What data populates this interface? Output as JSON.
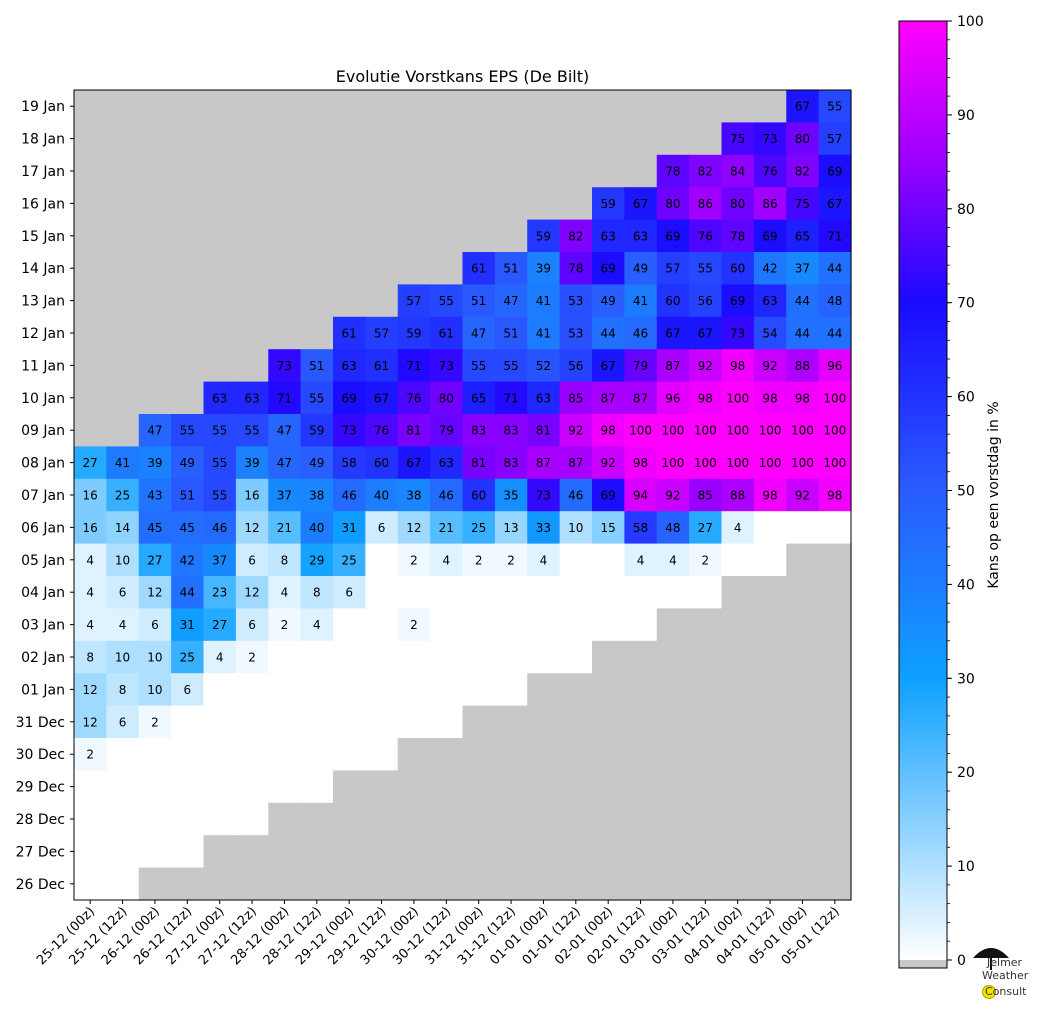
{
  "chart_data": {
    "type": "heatmap",
    "title": "Evolutie Vorstkans EPS (De Bilt)",
    "colorbar": {
      "label": "Kans op een vorstdag in %",
      "ticks": [
        "0",
        "10",
        "20",
        "30",
        "40",
        "50",
        "60",
        "70",
        "80",
        "90",
        "100"
      ],
      "range": [
        0,
        100
      ],
      "stops": [
        {
          "v": 0,
          "color": "#ffffff"
        },
        {
          "v": 30,
          "color": "#0ea0ff"
        },
        {
          "v": 50,
          "color": "#2a5cff"
        },
        {
          "v": 70,
          "color": "#1a0aff"
        },
        {
          "v": 85,
          "color": "#9a00ff"
        },
        {
          "v": 100,
          "color": "#ff00ff"
        }
      ],
      "nodata_color": "#c8c8c8"
    },
    "x_labels": [
      "25-12 (00z)",
      "25-12 (12z)",
      "26-12 (00z)",
      "26-12 (12z)",
      "27-12 (00z)",
      "27-12 (12z)",
      "28-12 (00z)",
      "28-12 (12z)",
      "29-12 (00z)",
      "29-12 (12z)",
      "30-12 (00z)",
      "30-12 (12z)",
      "31-12 (00z)",
      "31-12 (12z)",
      "01-01 (00z)",
      "01-01 (12z)",
      "02-01 (00z)",
      "02-01 (12z)",
      "03-01 (00z)",
      "03-01 (12z)",
      "04-01 (00z)",
      "04-01 (12z)",
      "05-01 (00z)",
      "05-01 (12z)"
    ],
    "y_labels": [
      "19 Jan",
      "18 Jan",
      "17 Jan",
      "16 Jan",
      "15 Jan",
      "14 Jan",
      "13 Jan",
      "12 Jan",
      "11 Jan",
      "10 Jan",
      "09 Jan",
      "08 Jan",
      "07 Jan",
      "06 Jan",
      "05 Jan",
      "04 Jan",
      "03 Jan",
      "02 Jan",
      "01 Jan",
      "31 Dec",
      "30 Dec",
      "29 Dec",
      "28 Dec",
      "27 Dec",
      "26 Dec"
    ],
    "rows": [
      [
        null,
        null,
        null,
        null,
        null,
        null,
        null,
        null,
        null,
        null,
        null,
        null,
        null,
        null,
        null,
        null,
        null,
        null,
        null,
        null,
        null,
        null,
        67,
        55
      ],
      [
        null,
        null,
        null,
        null,
        null,
        null,
        null,
        null,
        null,
        null,
        null,
        null,
        null,
        null,
        null,
        null,
        null,
        null,
        null,
        null,
        75,
        73,
        80,
        57
      ],
      [
        null,
        null,
        null,
        null,
        null,
        null,
        null,
        null,
        null,
        null,
        null,
        null,
        null,
        null,
        null,
        null,
        null,
        null,
        78,
        82,
        84,
        76,
        82,
        69
      ],
      [
        null,
        null,
        null,
        null,
        null,
        null,
        null,
        null,
        null,
        null,
        null,
        null,
        null,
        null,
        null,
        null,
        59,
        67,
        80,
        86,
        80,
        86,
        75,
        67
      ],
      [
        null,
        null,
        null,
        null,
        null,
        null,
        null,
        null,
        null,
        null,
        null,
        null,
        null,
        null,
        59,
        82,
        63,
        63,
        69,
        76,
        78,
        69,
        65,
        71
      ],
      [
        null,
        null,
        null,
        null,
        null,
        null,
        null,
        null,
        null,
        null,
        null,
        null,
        61,
        51,
        39,
        78,
        69,
        49,
        57,
        55,
        60,
        42,
        37,
        44
      ],
      [
        null,
        null,
        null,
        null,
        null,
        null,
        null,
        null,
        null,
        null,
        57,
        55,
        51,
        47,
        41,
        53,
        49,
        41,
        60,
        56,
        69,
        63,
        44,
        48
      ],
      [
        null,
        null,
        null,
        null,
        null,
        null,
        null,
        null,
        61,
        57,
        59,
        61,
        47,
        51,
        41,
        53,
        44,
        46,
        67,
        67,
        73,
        54,
        44,
        44
      ],
      [
        null,
        null,
        null,
        null,
        null,
        null,
        73,
        51,
        63,
        61,
        71,
        73,
        55,
        55,
        52,
        56,
        67,
        79,
        87,
        92,
        98,
        92,
        88,
        96
      ],
      [
        null,
        null,
        null,
        null,
        63,
        63,
        71,
        55,
        69,
        67,
        76,
        80,
        65,
        71,
        63,
        85,
        87,
        87,
        96,
        98,
        100,
        98,
        98,
        100
      ],
      [
        null,
        null,
        47,
        55,
        55,
        55,
        47,
        59,
        73,
        76,
        81,
        79,
        83,
        83,
        81,
        92,
        98,
        100,
        100,
        100,
        100,
        100,
        100,
        100
      ],
      [
        27,
        41,
        39,
        49,
        55,
        39,
        47,
        49,
        58,
        60,
        67,
        63,
        81,
        83,
        87,
        87,
        92,
        98,
        100,
        100,
        100,
        100,
        100,
        100
      ],
      [
        16,
        25,
        43,
        51,
        55,
        16,
        37,
        38,
        46,
        40,
        38,
        46,
        60,
        35,
        73,
        46,
        69,
        94,
        92,
        85,
        88,
        98,
        92,
        98
      ],
      [
        16,
        14,
        45,
        45,
        46,
        12,
        21,
        40,
        31,
        6,
        12,
        21,
        25,
        13,
        33,
        10,
        15,
        58,
        48,
        27,
        4,
        0,
        0,
        0
      ],
      [
        4,
        10,
        27,
        42,
        37,
        6,
        8,
        29,
        25,
        0,
        2,
        4,
        2,
        2,
        4,
        0,
        0,
        4,
        4,
        2,
        0,
        0,
        null,
        null
      ],
      [
        4,
        6,
        12,
        44,
        23,
        12,
        4,
        8,
        6,
        0,
        0,
        0,
        0,
        0,
        0,
        0,
        0,
        0,
        0,
        0,
        null,
        null,
        null,
        null
      ],
      [
        4,
        4,
        6,
        31,
        27,
        6,
        2,
        4,
        0,
        0,
        2,
        0,
        0,
        0,
        0,
        0,
        0,
        0,
        null,
        null,
        null,
        null,
        null,
        null
      ],
      [
        8,
        10,
        10,
        25,
        4,
        2,
        0,
        0,
        0,
        0,
        0,
        0,
        0,
        0,
        0,
        0,
        null,
        null,
        null,
        null,
        null,
        null,
        null,
        null
      ],
      [
        12,
        8,
        10,
        6,
        0,
        0,
        0,
        0,
        0,
        0,
        0,
        0,
        0,
        0,
        null,
        null,
        null,
        null,
        null,
        null,
        null,
        null,
        null,
        null
      ],
      [
        12,
        6,
        2,
        0,
        0,
        0,
        0,
        0,
        0,
        0,
        0,
        0,
        null,
        null,
        null,
        null,
        null,
        null,
        null,
        null,
        null,
        null,
        null,
        null
      ],
      [
        2,
        0,
        0,
        0,
        0,
        0,
        0,
        0,
        0,
        0,
        null,
        null,
        null,
        null,
        null,
        null,
        null,
        null,
        null,
        null,
        null,
        null,
        null,
        null
      ],
      [
        0,
        0,
        0,
        0,
        0,
        0,
        0,
        0,
        null,
        null,
        null,
        null,
        null,
        null,
        null,
        null,
        null,
        null,
        null,
        null,
        null,
        null,
        null,
        null
      ],
      [
        0,
        0,
        0,
        0,
        0,
        0,
        null,
        null,
        null,
        null,
        null,
        null,
        null,
        null,
        null,
        null,
        null,
        null,
        null,
        null,
        null,
        null,
        null,
        null
      ],
      [
        0,
        0,
        0,
        0,
        null,
        null,
        null,
        null,
        null,
        null,
        null,
        null,
        null,
        null,
        null,
        null,
        null,
        null,
        null,
        null,
        null,
        null,
        null,
        null
      ],
      [
        0,
        0,
        null,
        null,
        null,
        null,
        null,
        null,
        null,
        null,
        null,
        null,
        null,
        null,
        null,
        null,
        null,
        null,
        null,
        null,
        null,
        null,
        null,
        null
      ]
    ]
  },
  "logo": {
    "line1": "Jelmer",
    "line2": "Weather",
    "line3": "Consult"
  }
}
